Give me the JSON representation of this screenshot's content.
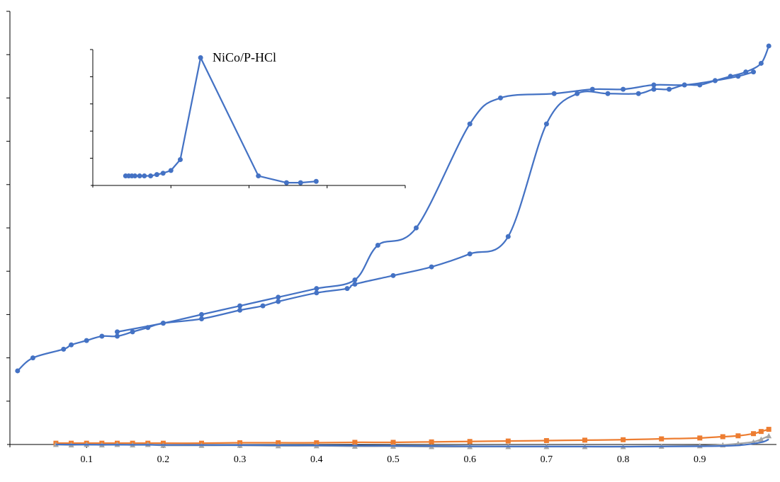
{
  "colors": {
    "blue": "#4472C4",
    "orange": "#ED7D31",
    "gray": "#A5A5A5",
    "axis": "#000000"
  },
  "chart_data": [
    {
      "type": "line",
      "title": "",
      "xlabel": "",
      "ylabel": "",
      "xlim": [
        0,
        1
      ],
      "ylim": [
        0,
        10
      ],
      "x_tick_labels": [
        "0.1",
        "0.2",
        "0.3",
        "0.4",
        "0.5",
        "0.6",
        "0.7",
        "0.8",
        "0.9"
      ],
      "y_ticks": 10,
      "grid": false,
      "series": [
        {
          "color": "blue",
          "marker": "circle",
          "x": [
            0.01,
            0.03,
            0.07,
            0.08,
            0.1,
            0.12,
            0.14,
            0.16,
            0.18,
            0.2,
            0.25,
            0.3,
            0.33,
            0.35,
            0.4,
            0.44,
            0.45,
            0.5,
            0.55,
            0.6,
            0.65,
            0.7,
            0.74,
            0.78,
            0.82,
            0.84,
            0.86,
            0.88,
            0.9,
            0.92,
            0.94,
            0.96,
            0.98,
            0.99
          ],
          "y": [
            1.7,
            2.0,
            2.2,
            2.3,
            2.4,
            2.5,
            2.5,
            2.6,
            2.7,
            2.8,
            2.9,
            3.1,
            3.2,
            3.3,
            3.5,
            3.6,
            3.7,
            3.9,
            4.1,
            4.4,
            4.8,
            7.4,
            8.1,
            8.1,
            8.1,
            8.2,
            8.2,
            8.3,
            8.3,
            8.4,
            8.5,
            8.6,
            8.8,
            9.2
          ]
        },
        {
          "color": "blue",
          "marker": "circle",
          "x": [
            0.14,
            0.2,
            0.25,
            0.3,
            0.35,
            0.4,
            0.45,
            0.48,
            0.53,
            0.6,
            0.64,
            0.71,
            0.76,
            0.8,
            0.84,
            0.88,
            0.92,
            0.95,
            0.97
          ],
          "y": [
            2.6,
            2.8,
            3.0,
            3.2,
            3.4,
            3.6,
            3.8,
            4.6,
            5.0,
            7.4,
            8.0,
            8.1,
            8.2,
            8.2,
            8.3,
            8.3,
            8.4,
            8.5,
            8.6
          ]
        },
        {
          "color": "orange",
          "marker": "square",
          "x": [
            0.06,
            0.08,
            0.1,
            0.12,
            0.14,
            0.16,
            0.18,
            0.2,
            0.25,
            0.3,
            0.35,
            0.4,
            0.45,
            0.5,
            0.55,
            0.6,
            0.65,
            0.7,
            0.75,
            0.8,
            0.85,
            0.9,
            0.93,
            0.95,
            0.97,
            0.98,
            0.99
          ],
          "y": [
            0.03,
            0.03,
            0.03,
            0.03,
            0.03,
            0.03,
            0.03,
            0.03,
            0.03,
            0.04,
            0.04,
            0.04,
            0.05,
            0.05,
            0.06,
            0.07,
            0.08,
            0.09,
            0.1,
            0.11,
            0.13,
            0.15,
            0.18,
            0.2,
            0.25,
            0.3,
            0.35
          ]
        },
        {
          "color": "gray",
          "marker": "triangle",
          "x": [
            0.06,
            0.08,
            0.1,
            0.12,
            0.14,
            0.16,
            0.18,
            0.2,
            0.25,
            0.3,
            0.35,
            0.4,
            0.45,
            0.5,
            0.55,
            0.6,
            0.65,
            0.7,
            0.75,
            0.8,
            0.85,
            0.9,
            0.93,
            0.95,
            0.97,
            0.98,
            0.99
          ],
          "y": [
            0.0,
            -0.01,
            0.0,
            -0.01,
            0.0,
            -0.01,
            0.0,
            -0.02,
            -0.02,
            -0.02,
            -0.03,
            -0.03,
            -0.04,
            -0.04,
            -0.05,
            -0.05,
            -0.05,
            -0.05,
            -0.05,
            -0.05,
            -0.04,
            -0.03,
            -0.01,
            0.02,
            0.06,
            0.12,
            0.2
          ]
        },
        {
          "color": "blue",
          "marker": "none",
          "x": [
            0.06,
            0.2,
            0.4,
            0.6,
            0.8,
            0.9,
            0.95,
            0.98,
            0.99
          ],
          "y": [
            0.0,
            -0.01,
            -0.02,
            -0.04,
            -0.05,
            -0.04,
            -0.02,
            0.05,
            0.12
          ]
        }
      ]
    },
    {
      "type": "line",
      "title": "NiCo/P-HCl",
      "xlabel": "",
      "ylabel": "",
      "xlim": [
        0,
        100
      ],
      "ylim": [
        0,
        5
      ],
      "y_ticks": 5,
      "x_ticks": 4,
      "grid": false,
      "series": [
        {
          "color": "blue",
          "marker": "circle",
          "x": [
            10.5,
            11.5,
            12.5,
            13.5,
            15,
            16.5,
            18.5,
            20.5,
            22.5,
            25,
            28,
            34.5,
            53,
            62,
            66.5,
            71.5
          ],
          "y": [
            0.35,
            0.35,
            0.35,
            0.35,
            0.35,
            0.35,
            0.35,
            0.4,
            0.45,
            0.55,
            0.95,
            4.7,
            0.35,
            0.1,
            0.1,
            0.15
          ]
        }
      ]
    }
  ]
}
